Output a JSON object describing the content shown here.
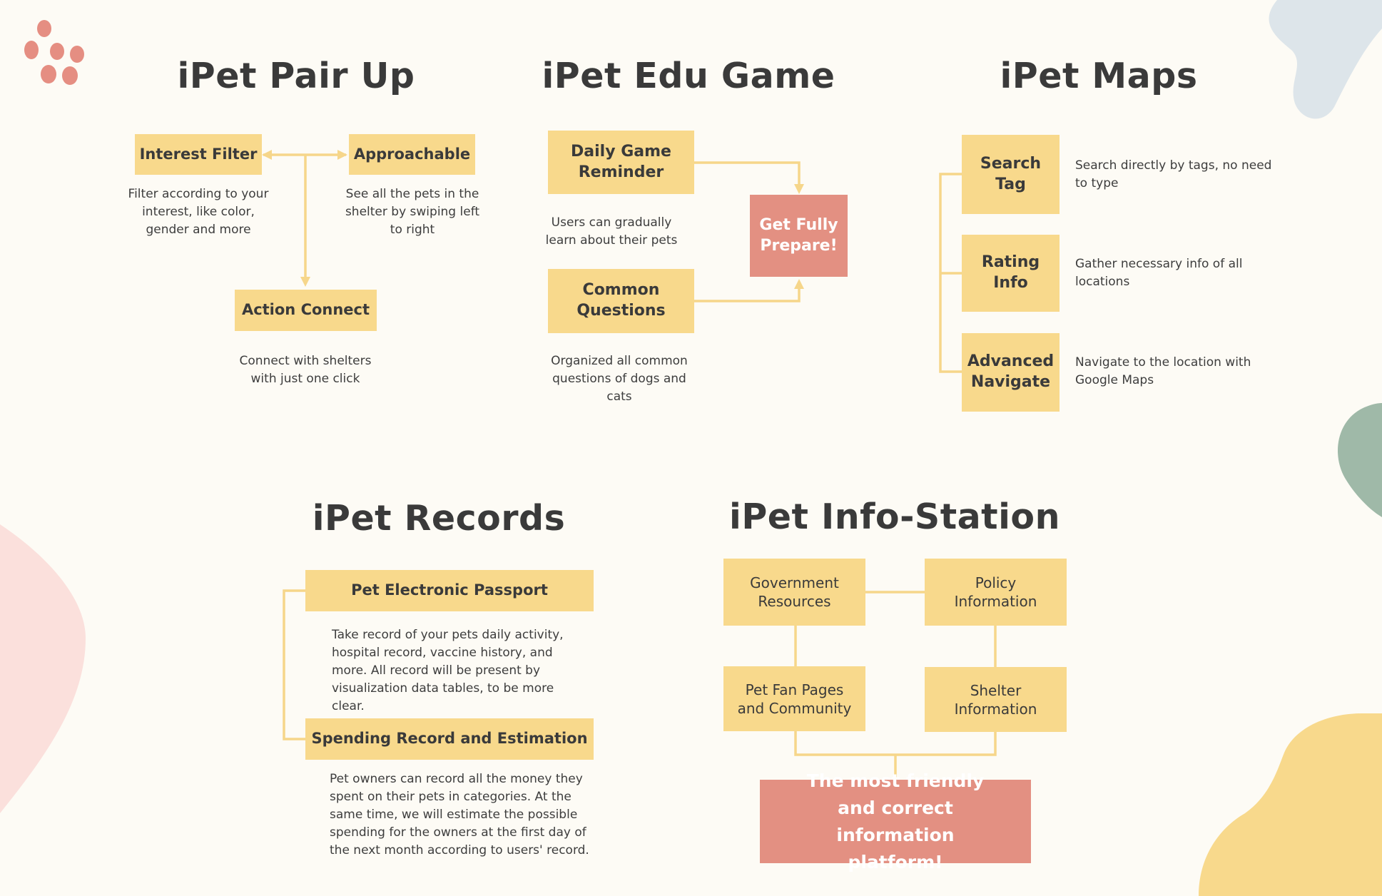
{
  "colors": {
    "background": "#fdfbf5",
    "box_yellow": "#f8d98c",
    "box_red": "#e39082",
    "connector": "#f6d68a",
    "text_dark": "#3a3a3a",
    "paw": "#e58e82",
    "blob_blue": "#dde5ea",
    "blob_green": "#9fb9a8",
    "blob_pink": "#fbe0dc",
    "blob_yellow": "#f8d98c"
  },
  "decor": {
    "paw_icon": "paw-print-icon"
  },
  "pair_up": {
    "title": "iPet Pair Up",
    "interest_filter": "Interest Filter",
    "interest_desc": "Filter according to your interest, like color, gender and more",
    "approachable": "Approachable",
    "approachable_desc": "See all the pets in the shelter by swiping left to right",
    "action_connect": "Action Connect",
    "action_desc": "Connect with shelters with just one click"
  },
  "edu_game": {
    "title": "iPet Edu Game",
    "daily_reminder": "Daily Game Reminder",
    "daily_desc": "Users can gradually learn about their pets",
    "common_questions": "Common Questions",
    "common_desc": "Organized all common questions of dogs and cats",
    "prepare": "Get Fully Prepare!"
  },
  "maps": {
    "title": "iPet Maps",
    "search_tag": "Search Tag",
    "search_desc": "Search directly by tags, no need to type",
    "rating_info": "Rating Info",
    "rating_desc": "Gather necessary info of all locations",
    "advanced_navigate": "Advanced Navigate",
    "navigate_desc": "Navigate to the location with Google Maps"
  },
  "records": {
    "title": "iPet Records",
    "passport": "Pet Electronic Passport",
    "passport_desc": "Take record of your pets daily activity, hospital record, vaccine history, and more. All record will be present by visualization data tables, to be more clear.",
    "spending": "Spending Record and Estimation",
    "spending_desc": "Pet owners can record all the money they spent on their pets in categories. At the same time, we will estimate the possible spending for the owners at the first day of the next month according to users' record."
  },
  "info_station": {
    "title": "iPet Info-Station",
    "government": "Government Resources",
    "policy": "Policy Information",
    "fan_pages": "Pet Fan Pages and Community",
    "shelter": "Shelter Information",
    "platform": "The most friendly and correct information platform!"
  }
}
